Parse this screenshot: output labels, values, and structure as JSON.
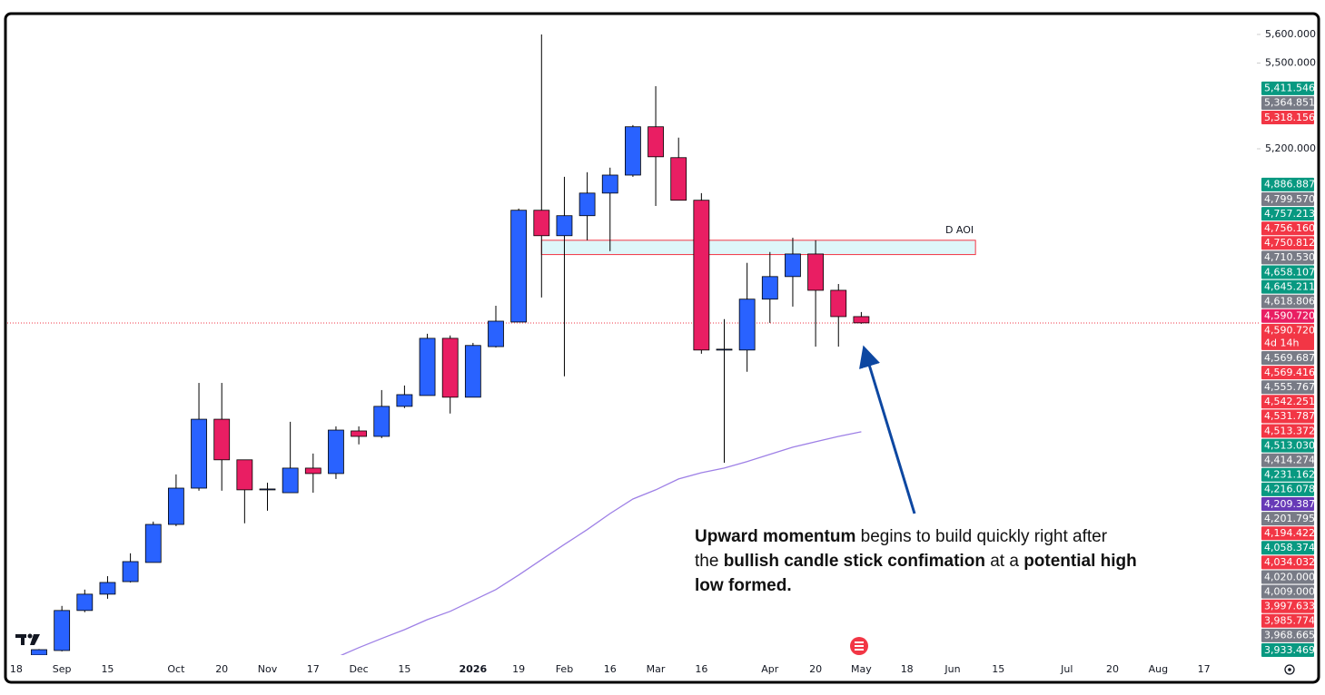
{
  "chart_data": {
    "type": "candlestick",
    "categories": [
      "18",
      null,
      "Sep",
      null,
      "15",
      null,
      null,
      "Oct",
      null,
      "20",
      null,
      "Nov",
      null,
      "17",
      null,
      "Dec",
      null,
      "15",
      null,
      null,
      "2026",
      null,
      "19",
      null,
      "Feb",
      null,
      "16",
      null,
      "Mar",
      null,
      "16",
      null,
      null,
      "Apr",
      null,
      "20",
      null,
      "May",
      null,
      "18",
      null,
      "Jun",
      null,
      "15",
      null,
      null,
      "Jul",
      null,
      "20",
      null,
      "Aug",
      null,
      "17"
    ],
    "open": [
      null,
      3429,
      3445,
      3585,
      3642,
      3686,
      3753,
      3886,
      4013,
      4254,
      4112,
      4007,
      3997,
      4083,
      4064,
      4213,
      4194,
      4299,
      4337,
      4537,
      4331,
      4508,
      4594,
      4985,
      4896,
      4966,
      5045,
      5108,
      5277,
      5169,
      5020,
      4496,
      4496,
      4674,
      4753,
      4832,
      4705,
      4613,
      null,
      null,
      null,
      null,
      null,
      null,
      null,
      null,
      null,
      null,
      null,
      null,
      null,
      null,
      null
    ],
    "high": [
      null,
      3450,
      3601,
      3658,
      3705,
      3785,
      3896,
      4061,
      4381,
      4381,
      4112,
      4032,
      4245,
      4134,
      4229,
      4229,
      4356,
      4372,
      4553,
      4547,
      4521,
      4651,
      4991,
      5600,
      5102,
      5118,
      5134,
      5283,
      5419,
      5239,
      5045,
      4604,
      4801,
      4839,
      4889,
      4880,
      4727,
      4629,
      null,
      null,
      null,
      null,
      null,
      null,
      null,
      null,
      null,
      null,
      null,
      null,
      null,
      null,
      null
    ],
    "low": [
      null,
      3428,
      3442,
      3579,
      3626,
      3683,
      3753,
      3880,
      4004,
      4004,
      3890,
      3934,
      3997,
      3997,
      4045,
      4166,
      4188,
      4293,
      4337,
      4274,
      4331,
      4505,
      4594,
      4680,
      4404,
      4880,
      4842,
      5102,
      5000,
      5020,
      4483,
      4102,
      4420,
      4591,
      4648,
      4508,
      4508,
      4588,
      null,
      null,
      null,
      null,
      null,
      null,
      null,
      null,
      null,
      null,
      null,
      null,
      null,
      null,
      null
    ],
    "close": [
      null,
      3448,
      3585,
      3642,
      3683,
      3756,
      3886,
      4013,
      4254,
      4112,
      4007,
      4010,
      4083,
      4064,
      4216,
      4194,
      4299,
      4340,
      4537,
      4331,
      4512,
      4597,
      4985,
      4896,
      4966,
      5045,
      5108,
      5277,
      5172,
      5020,
      4496,
      4499,
      4674,
      4753,
      4832,
      4705,
      4613,
      4591,
      null,
      null,
      null,
      null,
      null,
      null,
      null,
      null,
      null,
      null,
      null,
      null,
      null,
      null,
      null
    ],
    "ma": [
      null,
      null,
      null,
      null,
      null,
      null,
      null,
      null,
      null,
      null,
      null,
      null,
      null,
      null,
      3420,
      3455,
      3487,
      3518,
      3553,
      3582,
      3620,
      3658,
      3709,
      3763,
      3816,
      3868,
      3924,
      3975,
      4007,
      4045,
      4067,
      4083,
      4106,
      4131,
      4156,
      4175,
      4194,
      4210,
      null,
      null,
      null,
      null,
      null,
      null,
      null,
      null,
      null,
      null,
      null,
      null,
      null,
      null,
      null
    ],
    "up_color": "#2962ff",
    "down_color": "#e91e63",
    "ma_color": "#9e80e6",
    "ylim": [
      3429,
      5657
    ],
    "yticks": [
      {
        "value": 5600,
        "label": "5,600.000"
      },
      {
        "value": 5500,
        "label": "5,500.000"
      },
      {
        "value": 5200,
        "label": "5,200.000"
      }
    ],
    "zone": {
      "label": "D AOI",
      "top": 4880,
      "bottom": 4830,
      "start": 23,
      "end": 42
    },
    "current_price": 13,
    "price_labels": [
      {
        "value": 5411.546,
        "label": "5,411.546",
        "color": "#089981"
      },
      {
        "value": 5364.851,
        "label": "5,364.851",
        "color": "#787b86"
      },
      {
        "value": 5318.156,
        "label": "5,318.156",
        "color": "#f23645"
      },
      {
        "value": 4886.887,
        "label": "4,886.887",
        "color": "#089981"
      },
      {
        "value": 4799.57,
        "label": "4,799.570",
        "color": "#787b86"
      },
      {
        "value": 4757.213,
        "label": "4,757.213",
        "color": "#089981"
      },
      {
        "value": 4756.16,
        "label": "4,756.160",
        "color": "#f23645"
      },
      {
        "value": 4750.812,
        "label": "4,750.812",
        "color": "#f23645"
      },
      {
        "value": 4710.53,
        "label": "4,710.530",
        "color": "#787b86"
      },
      {
        "value": 4658.107,
        "label": "4,658.107",
        "color": "#089981"
      },
      {
        "value": 4645.211,
        "label": "4,645.211",
        "color": "#089981"
      },
      {
        "value": 4618.806,
        "label": "4,618.806",
        "color": "#787b86"
      },
      {
        "value": 4590.72,
        "label": "4,590.720",
        "color": "#e91e63"
      },
      {
        "value": 4590.72,
        "label": "4,590.720",
        "color": "#f23645",
        "sub": "4d 14h"
      },
      {
        "value": 4569.687,
        "label": "4,569.687",
        "color": "#787b86"
      },
      {
        "value": 4569.416,
        "label": "4,569.416",
        "color": "#f23645"
      },
      {
        "value": 4555.767,
        "label": "4,555.767",
        "color": "#787b86"
      },
      {
        "value": 4542.251,
        "label": "4,542.251",
        "color": "#f23645"
      },
      {
        "value": 4531.787,
        "label": "4,531.787",
        "color": "#f23645"
      },
      {
        "value": 4513.372,
        "label": "4,513.372",
        "color": "#f23645"
      },
      {
        "value": 4513.03,
        "label": "4,513.030",
        "color": "#089981"
      },
      {
        "value": 4414.274,
        "label": "4,414.274",
        "color": "#787b86"
      },
      {
        "value": 4231.162,
        "label": "4,231.162",
        "color": "#089981"
      },
      {
        "value": 4216.078,
        "label": "4,216.078",
        "color": "#089981"
      },
      {
        "value": 4209.387,
        "label": "4,209.387",
        "color": "#673ab7"
      },
      {
        "value": 4201.795,
        "label": "4,201.795",
        "color": "#787b86"
      },
      {
        "value": 4194.422,
        "label": "4,194.422",
        "color": "#f23645"
      },
      {
        "value": 4058.374,
        "label": "4,058.374",
        "color": "#089981"
      },
      {
        "value": 4034.032,
        "label": "4,034.032",
        "color": "#f23645"
      },
      {
        "value": 4020.0,
        "label": "4,020.000",
        "color": "#787b86"
      },
      {
        "value": 4009.0,
        "label": "4,009.000",
        "color": "#787b86"
      },
      {
        "value": 3997.633,
        "label": "3,997.633",
        "color": "#f23645"
      },
      {
        "value": 3985.774,
        "label": "3,985.774",
        "color": "#f23645"
      },
      {
        "value": 3968.665,
        "label": "3,968.665",
        "color": "#787b86"
      },
      {
        "value": 3933.469,
        "label": "3,933.469",
        "color": "#089981"
      }
    ],
    "annotation": {
      "lines": [
        [
          {
            "text": "Upward momentum",
            "bold": true
          },
          {
            "text": " begins to build quickly right after",
            "bold": false
          }
        ],
        [
          {
            "text": "the ",
            "bold": false
          },
          {
            "text": "bullish candle stick confimation",
            "bold": true
          },
          {
            "text": " at a ",
            "bold": false
          },
          {
            "text": "potential high",
            "bold": true
          }
        ],
        [
          {
            "text": "low formed.",
            "bold": true
          }
        ]
      ]
    }
  }
}
